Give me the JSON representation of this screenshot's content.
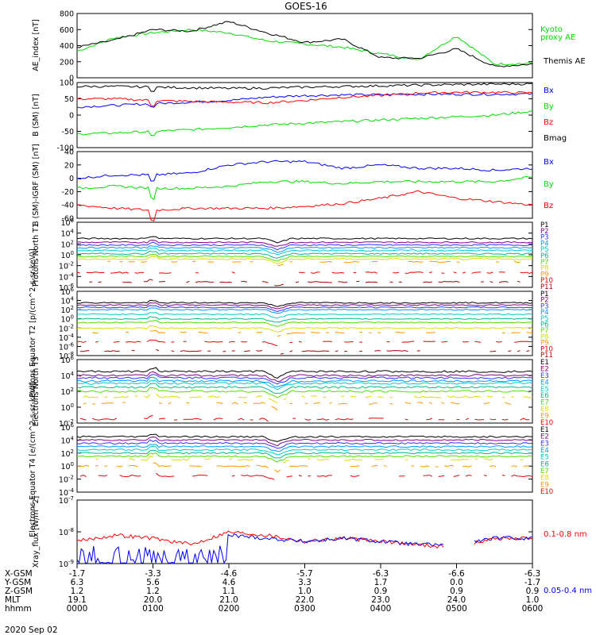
{
  "title": "GOES-16",
  "date": "2020 Sep 02",
  "colors": {
    "black": "#000000",
    "red": "#ff0000",
    "green": "#00dd00",
    "blue": "#0000ff",
    "p1": "#000000",
    "p2": "#8b008b",
    "p3": "#3333ff",
    "p4": "#0099ff",
    "p5": "#00cccc",
    "p6": "#00bb88",
    "p7": "#55dd00",
    "p8": "#dddd00",
    "p9": "#ff9900",
    "p10": "#ee0000",
    "p11": "#aa0000"
  },
  "chart_data": [
    {
      "type": "line",
      "ylabel": "AE_index [nT]",
      "ylim": [
        0,
        800
      ],
      "yticks": [
        "800",
        "600",
        "400",
        "200",
        "0"
      ],
      "x": [
        "0000",
        "0030",
        "0100",
        "0130",
        "0200",
        "0230",
        "0300",
        "0330",
        "0400",
        "0430",
        "0500",
        "0530",
        "0600"
      ],
      "series": [
        {
          "name": "Kyoto proxy AE",
          "color": "green",
          "values": [
            330,
            500,
            560,
            600,
            560,
            460,
            420,
            380,
            300,
            230,
            520,
            170,
            180
          ]
        },
        {
          "name": "Themis AE",
          "color": "black",
          "values": [
            380,
            470,
            600,
            580,
            700,
            560,
            440,
            480,
            250,
            240,
            360,
            140,
            170
          ]
        }
      ]
    },
    {
      "type": "line",
      "ylabel": "B (SM) [nT]",
      "ylim": [
        -100,
        100
      ],
      "yticks": [
        "100",
        "50",
        "0",
        "-50",
        "-100"
      ],
      "x": [
        "0000",
        "0030",
        "0100",
        "0130",
        "0200",
        "0230",
        "0300",
        "0330",
        "0400",
        "0430",
        "0500",
        "0530",
        "0600"
      ],
      "series": [
        {
          "name": "Bx",
          "color": "blue",
          "values": [
            25,
            30,
            35,
            40,
            45,
            55,
            60,
            62,
            63,
            64,
            64,
            64,
            65
          ]
        },
        {
          "name": "By",
          "color": "green",
          "values": [
            -58,
            -55,
            -50,
            -45,
            -38,
            -30,
            -25,
            -20,
            -15,
            -10,
            -5,
            0,
            12
          ]
        },
        {
          "name": "Bz",
          "color": "red",
          "values": [
            50,
            50,
            45,
            42,
            40,
            38,
            45,
            55,
            60,
            68,
            70,
            70,
            68
          ]
        },
        {
          "name": "Bmag",
          "color": "black",
          "values": [
            88,
            88,
            86,
            84,
            82,
            83,
            86,
            88,
            90,
            92,
            94,
            95,
            96
          ]
        }
      ]
    },
    {
      "type": "line",
      "ylabel": "B (SM)-IGRF (SM) [nT]",
      "ylim": [
        -60,
        40
      ],
      "yticks": [
        "40",
        "20",
        "0",
        "-20",
        "-40",
        "-60"
      ],
      "x": [
        "0000",
        "0030",
        "0100",
        "0130",
        "0200",
        "0230",
        "0300",
        "0330",
        "0400",
        "0430",
        "0500",
        "0530",
        "0600"
      ],
      "series": [
        {
          "name": "Bx",
          "color": "blue",
          "values": [
            0,
            5,
            5,
            8,
            20,
            25,
            25,
            15,
            20,
            15,
            15,
            12,
            15
          ]
        },
        {
          "name": "By",
          "color": "green",
          "values": [
            -15,
            -12,
            -15,
            -15,
            -12,
            -5,
            -5,
            -8,
            -5,
            -5,
            -5,
            -5,
            2
          ]
        },
        {
          "name": "Bz",
          "color": "red",
          "values": [
            -40,
            -45,
            -48,
            -45,
            -45,
            -45,
            -42,
            -38,
            -30,
            -20,
            -30,
            -35,
            -40
          ]
        }
      ]
    },
    {
      "type": "line",
      "ylabel": "Protons North T1",
      "ylim": [
        "10^-6",
        "10^6"
      ],
      "yticks": [
        "10^6",
        "10^4",
        "10^2",
        "10^0",
        "10^-2",
        "10^-4",
        "10^-6"
      ],
      "legend": [
        "P1",
        "P2",
        "P3",
        "P4",
        "P5",
        "P6",
        "P7",
        "P8",
        "P9",
        "P10",
        "P11"
      ],
      "log_levels": [
        3,
        2.3,
        1.8,
        1.3,
        0.8,
        0.2,
        -0.3,
        -0.8,
        -1.3,
        -3.3,
        -5
      ]
    },
    {
      "type": "line",
      "ylabel": "Protons Equator T2 [p/(cm^2-s-sr-keV)]",
      "ylim": [
        "10^-8",
        "10^6"
      ],
      "yticks": [
        "10^6",
        "10^4",
        "10^2",
        "10^0",
        "10^-2",
        "10^-4",
        "10^-6",
        "10^-8"
      ],
      "legend": [
        "P1",
        "P2",
        "P3",
        "P4",
        "P5",
        "P6",
        "P7",
        "P8",
        "P9",
        "P10",
        "P11"
      ],
      "log_levels": [
        3.5,
        3,
        2.5,
        2,
        1,
        0,
        -0.8,
        -2,
        -3,
        -5,
        -7
      ]
    },
    {
      "type": "line",
      "ylabel": "Electrons North T3",
      "ylim": [
        "10^-2",
        "10^6"
      ],
      "yticks": [
        "10^6",
        "10^4",
        "10^2",
        "10^0",
        "10^-2"
      ],
      "legend": [
        "E1",
        "E2",
        "E3",
        "E4",
        "E5",
        "E6",
        "E7",
        "E8",
        "E9",
        "E10"
      ],
      "log_levels": [
        4.5,
        4,
        3.7,
        3.3,
        3,
        2.5,
        2,
        1.3,
        0.5,
        -1.5
      ]
    },
    {
      "type": "line",
      "ylabel": "Electrons Equator T4 [e/(cm^2-s-sr-keV)]",
      "ylim": [
        "10^-4",
        "10^6"
      ],
      "yticks": [
        "10^6",
        "10^4",
        "10^2",
        "10^0",
        "10^-2",
        "10^-4"
      ],
      "legend": [
        "E1",
        "E2",
        "E3",
        "E4",
        "E5",
        "E6",
        "E7",
        "E8",
        "E9",
        "E10"
      ],
      "log_levels": [
        4.5,
        4,
        3.5,
        3,
        2.5,
        2,
        1.5,
        1,
        0,
        -1.5
      ]
    },
    {
      "type": "line",
      "ylabel": "Xray_flux [W/m^2]",
      "ylim": [
        "10^-9",
        "10^-7"
      ],
      "yticks": [
        "10^-7",
        "10^-8",
        "10^-9"
      ],
      "series": [
        {
          "name": "0.1-0.8 nm",
          "color": "red",
          "log_values": [
            -8.3,
            -8.1,
            -8.2,
            -8.4,
            -8.0,
            -8.1,
            -8.3,
            -8.2,
            -8.3,
            -8.4,
            -8.5,
            -8.2,
            -8.2
          ]
        },
        {
          "name": "0.05-0.4 nm",
          "color": "blue",
          "log_values": [
            -9.0,
            -8.8,
            -8.9,
            -9.0,
            -8.1,
            -8.2,
            -8.3,
            -8.2,
            -8.3,
            -8.4,
            -8.4,
            -8.2,
            -8.2
          ]
        }
      ]
    }
  ],
  "axis_table": {
    "row_labels": [
      "X-GSM",
      "Y-GSM",
      "Z-GSM",
      "MLT",
      "hhmm"
    ],
    "columns": [
      [
        "-1.7",
        "6.3",
        "1.2",
        "19.1",
        "0000"
      ],
      [
        "-3.3",
        "5.6",
        "1.2",
        "20.0",
        "0100"
      ],
      [
        "-4.6",
        "4.6",
        "1.1",
        "21.0",
        "0200"
      ],
      [
        "-5.7",
        "3.3",
        "1.0",
        "22.0",
        "0300"
      ],
      [
        "-6.3",
        "1.7",
        "0.9",
        "23.0",
        "0400"
      ],
      [
        "-6.6",
        "0.0",
        "0.9",
        "24.0",
        "0500"
      ],
      [
        "-6.3",
        "-1.7",
        "0.9",
        "1.0",
        "0600"
      ]
    ]
  },
  "legends": {
    "ae": [
      {
        "text": "Kyoto",
        "color": "green"
      },
      {
        "text": "proxy AE",
        "color": "green"
      },
      {
        "text": "Themis AE",
        "color": "black"
      }
    ],
    "b": [
      {
        "text": "Bx",
        "color": "blue"
      },
      {
        "text": "By",
        "color": "green"
      },
      {
        "text": "Bz",
        "color": "red"
      },
      {
        "text": "Bmag",
        "color": "black"
      }
    ],
    "bigrf": [
      {
        "text": "Bx",
        "color": "blue"
      },
      {
        "text": "By",
        "color": "green"
      },
      {
        "text": "Bz",
        "color": "red"
      }
    ],
    "xray": [
      {
        "text": "0.1-0.8 nm",
        "color": "red"
      },
      {
        "text": "0.05-0.4 nm",
        "color": "blue"
      }
    ]
  }
}
